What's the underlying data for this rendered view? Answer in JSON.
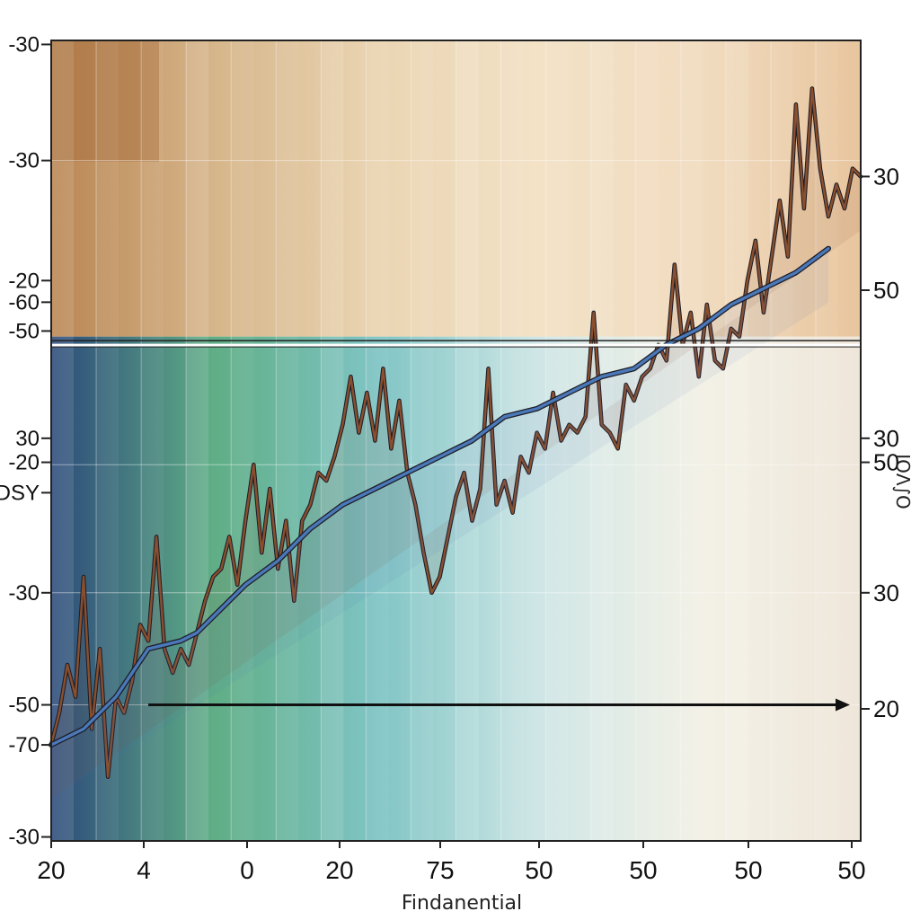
{
  "chart_data": {
    "type": "line",
    "xlabel": "Findanential",
    "right_axis_label": "ΙОΛ∫O",
    "x_tick_labels": [
      "20",
      "4",
      "0",
      "20",
      "75",
      "50",
      "50",
      "50",
      "50"
    ],
    "left_tick_labels": [
      {
        "text": "-30",
        "level": 0.995
      },
      {
        "text": "-30",
        "level": 0.85
      },
      {
        "text": "-20",
        "level": 0.7
      },
      {
        "text": "-60",
        "level": 0.673
      },
      {
        "text": "-50",
        "level": 0.637
      },
      {
        "text": "30",
        "level": 0.503
      },
      {
        "text": "-20",
        "level": 0.473
      },
      {
        "text": "DSY",
        "level": 0.435
      },
      {
        "text": "-30",
        "level": 0.31
      },
      {
        "text": "-50",
        "level": 0.17
      },
      {
        "text": "-70",
        "level": 0.12
      },
      {
        "text": "-30",
        "level": 0.005
      }
    ],
    "right_tick_labels": [
      {
        "text": "30",
        "level": 0.83
      },
      {
        "text": "50",
        "level": 0.688
      },
      {
        "text": "30",
        "level": 0.503
      },
      {
        "text": "50",
        "level": 0.473
      },
      {
        "text": "30",
        "level": 0.31
      },
      {
        "text": "20",
        "level": 0.165
      }
    ],
    "background_bands": [
      {
        "level": 0.63,
        "colors": [
          "#b98552",
          "#d6b58a",
          "#ead4b2",
          "#f3e2c6",
          "#f1dcc0",
          "#e8c59e"
        ]
      },
      {
        "level": 0.0,
        "colors": [
          "#2c4a7a",
          "#5fae86",
          "#7fc4c4",
          "#cfe6e6",
          "#f3f1e6",
          "#efe6da"
        ]
      }
    ],
    "series": [
      {
        "color": "#8a4f2e",
        "x": [
          0,
          1,
          2,
          3,
          4,
          5,
          6,
          7,
          8,
          9,
          10,
          11,
          12,
          13,
          14,
          15,
          16,
          17,
          18,
          19,
          20,
          21,
          22,
          23,
          24,
          25,
          26,
          27,
          28,
          29,
          30,
          31,
          32,
          33,
          34,
          35,
          36,
          37,
          38,
          39,
          40,
          41,
          42,
          43,
          44,
          45,
          46,
          47,
          48,
          49,
          50,
          51,
          52,
          53,
          54,
          55,
          56,
          57,
          58,
          59,
          60,
          61,
          62,
          63,
          64,
          65,
          66,
          67,
          68,
          69,
          70,
          71,
          72,
          73,
          74,
          75,
          76,
          77,
          78,
          79,
          80,
          81,
          82,
          83,
          84,
          85,
          86,
          87,
          88,
          89,
          90,
          91,
          92,
          93,
          94,
          95,
          96,
          97,
          98,
          99,
          100
        ],
        "values": [
          0.12,
          0.16,
          0.22,
          0.18,
          0.33,
          0.14,
          0.24,
          0.08,
          0.18,
          0.16,
          0.2,
          0.27,
          0.25,
          0.38,
          0.24,
          0.21,
          0.24,
          0.22,
          0.26,
          0.3,
          0.33,
          0.34,
          0.38,
          0.32,
          0.4,
          0.47,
          0.36,
          0.44,
          0.34,
          0.4,
          0.3,
          0.4,
          0.42,
          0.46,
          0.45,
          0.48,
          0.52,
          0.58,
          0.51,
          0.56,
          0.5,
          0.59,
          0.49,
          0.55,
          0.46,
          0.42,
          0.36,
          0.31,
          0.33,
          0.38,
          0.43,
          0.46,
          0.4,
          0.44,
          0.59,
          0.42,
          0.45,
          0.41,
          0.48,
          0.46,
          0.51,
          0.49,
          0.56,
          0.5,
          0.52,
          0.51,
          0.53,
          0.66,
          0.52,
          0.51,
          0.49,
          0.57,
          0.55,
          0.58,
          0.59,
          0.62,
          0.6,
          0.72,
          0.62,
          0.66,
          0.58,
          0.67,
          0.6,
          0.59,
          0.64,
          0.63,
          0.7,
          0.75,
          0.66,
          0.73,
          0.8,
          0.73,
          0.92,
          0.79,
          0.94,
          0.84,
          0.78,
          0.82,
          0.79,
          0.84,
          0.83
        ]
      },
      {
        "color": "#4a78b8",
        "x": [
          0,
          4,
          8,
          12,
          16,
          18,
          20,
          24,
          28,
          32,
          36,
          40,
          44,
          48,
          52,
          56,
          60,
          64,
          68,
          72,
          76,
          80,
          84,
          88,
          92,
          96
        ],
        "values": [
          0.12,
          0.14,
          0.18,
          0.24,
          0.25,
          0.26,
          0.28,
          0.32,
          0.35,
          0.39,
          0.42,
          0.44,
          0.46,
          0.48,
          0.5,
          0.53,
          0.54,
          0.56,
          0.58,
          0.59,
          0.62,
          0.64,
          0.67,
          0.69,
          0.71,
          0.74
        ]
      }
    ],
    "annotations": [
      {
        "type": "horizontal-line",
        "level": 0.625
      },
      {
        "type": "arrow",
        "level": 0.17,
        "x_from": 12,
        "x_to": 100
      }
    ]
  }
}
